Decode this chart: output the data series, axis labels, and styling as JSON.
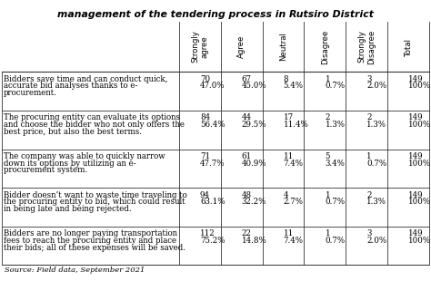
{
  "title": "management of the tendering process in Rutsiro District",
  "col_headers": [
    "Strongly\nagree",
    "Agree",
    "Neutral",
    "Disagree",
    "Strongly\nDisagree",
    "Total"
  ],
  "rows": [
    {
      "label_lines": [
        "Bidders save time and can conduct quick,",
        "accurate bid analyses thanks to e-",
        "procurement."
      ],
      "counts": [
        "70",
        "67",
        "8",
        "1",
        "3",
        "149"
      ],
      "percents": [
        "47.0%",
        "45.0%",
        "5.4%",
        "0.7%",
        "2.0%",
        "100%"
      ]
    },
    {
      "label_lines": [
        "The procuring entity can evaluate its options",
        "and choose the bidder who not only offers the",
        "best price, but also the best terms."
      ],
      "counts": [
        "84",
        "44",
        "17",
        "2",
        "2",
        "149"
      ],
      "percents": [
        "56.4%",
        "29.5%",
        "11.4%",
        "1.3%",
        "1.3%",
        "100%"
      ]
    },
    {
      "label_lines": [
        "The company was able to quickly narrow",
        "down its options by utilizing an e-",
        "procurement system."
      ],
      "counts": [
        "71",
        "61",
        "11",
        "5",
        "1",
        "149"
      ],
      "percents": [
        "47.7%",
        "40.9%",
        "7.4%",
        "3.4%",
        "0.7%",
        "100%"
      ]
    },
    {
      "label_lines": [
        "Bidder doesn’t want to waste time traveling to",
        "the procuring entity to bid, which could result",
        "in being late and being rejected."
      ],
      "counts": [
        "94",
        "48",
        "4",
        "1",
        "2",
        "149"
      ],
      "percents": [
        "63.1%",
        "32.2%",
        "2.7%",
        "0.7%",
        "1.3%",
        "100%"
      ]
    },
    {
      "label_lines": [
        "Bidders are no longer paying transportation",
        "fees to reach the procuring entity and place",
        "their bids; all of these expenses will be saved."
      ],
      "counts": [
        "112",
        "22",
        "11",
        "1",
        "3",
        "149"
      ],
      "percents": [
        "75.2%",
        "14.8%",
        "7.4%",
        "0.7%",
        "2.0%",
        "100%"
      ]
    }
  ],
  "source": "Source: Field data, September 2021",
  "table_bg": "#ffffff",
  "header_bg": "#ffffff",
  "fig_bg": "#ffffff",
  "border_color": "#333333",
  "font_size": 6.2,
  "header_font_size": 6.2,
  "title_font_size": 7.8
}
